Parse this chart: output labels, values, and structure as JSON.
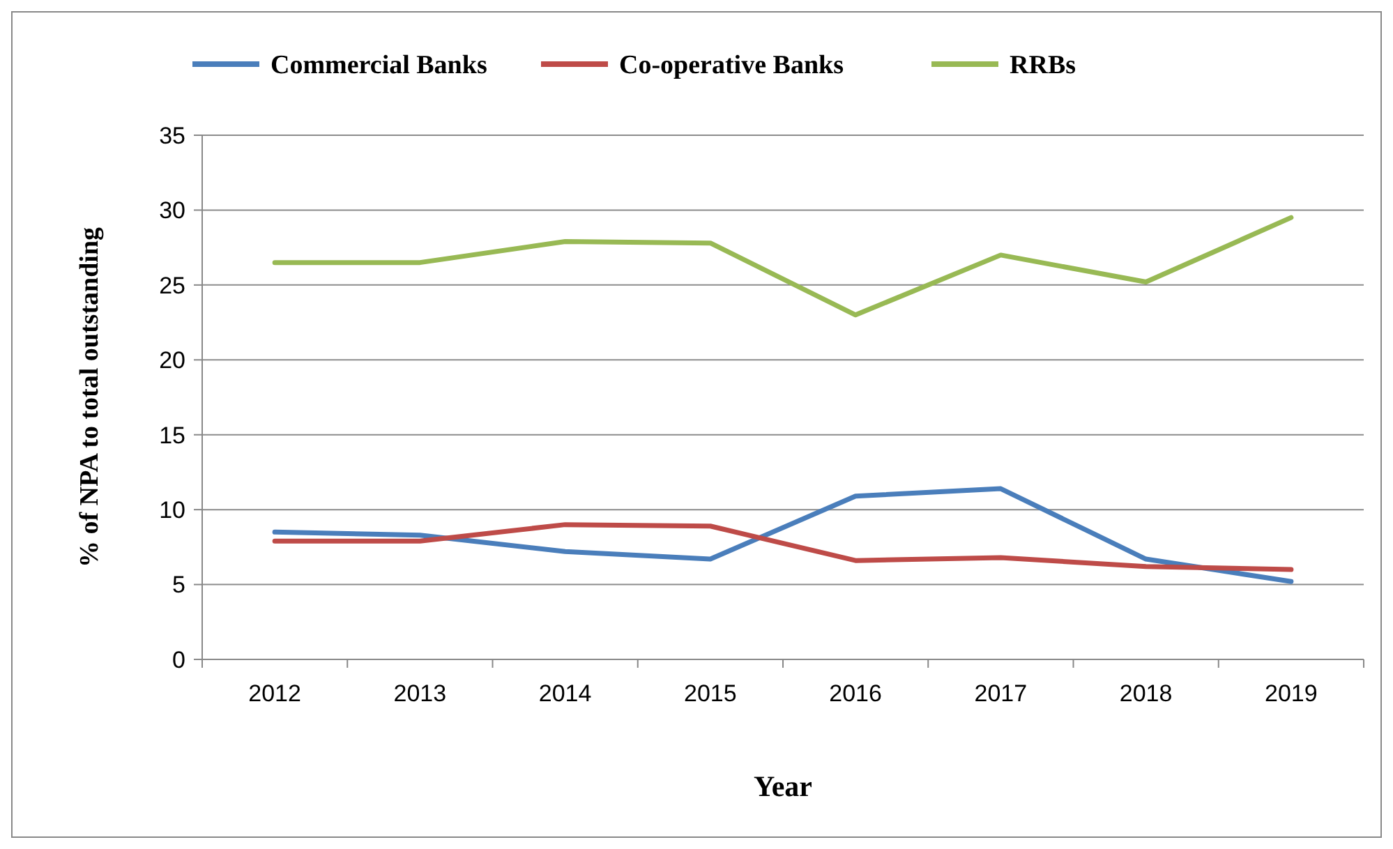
{
  "chart_data": {
    "type": "line",
    "xlabel": "Year",
    "ylabel": "% of NPA to total outstanding",
    "categories": [
      "2012",
      "2013",
      "2014",
      "2015",
      "2016",
      "2017",
      "2018",
      "2019"
    ],
    "series": [
      {
        "name": "Commercial Banks",
        "color": "#4a7ebb",
        "values": [
          8.5,
          8.3,
          7.2,
          6.7,
          10.9,
          11.4,
          6.7,
          5.2
        ]
      },
      {
        "name": "Co-operative Banks",
        "color": "#be4b48",
        "values": [
          7.9,
          7.9,
          9.0,
          8.9,
          6.6,
          6.8,
          6.2,
          6.0
        ]
      },
      {
        "name": "RRBs",
        "color": "#98b954",
        "values": [
          26.5,
          26.5,
          27.9,
          27.8,
          23.0,
          27.0,
          25.2,
          29.5
        ]
      }
    ],
    "ylim": [
      0,
      35
    ],
    "yticks": [
      0,
      5,
      10,
      15,
      20,
      25,
      30,
      35
    ],
    "grid": "y",
    "legend": "top",
    "marker": "none",
    "line_style": "solid"
  }
}
